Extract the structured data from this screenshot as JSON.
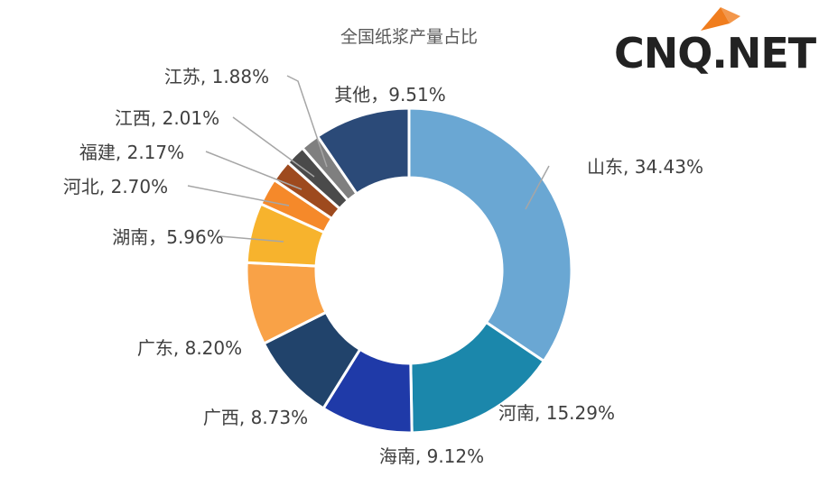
{
  "chart_data": {
    "type": "pie",
    "variant": "donut",
    "title": "全国纸浆产量占比",
    "legend": "none",
    "slices": [
      {
        "name": "山东",
        "value": 34.43,
        "label": "山东, 34.43%",
        "color": "#6aa7d3"
      },
      {
        "name": "河南",
        "value": 15.29,
        "label": "河南, 15.29%",
        "color": "#1b87ab"
      },
      {
        "name": "海南",
        "value": 9.12,
        "label": "海南, 9.12%",
        "color": "#1f3aa8"
      },
      {
        "name": "广西",
        "value": 8.73,
        "label": "广西, 8.73%",
        "color": "#21436b"
      },
      {
        "name": "广东",
        "value": 8.2,
        "label": "广东, 8.20%",
        "color": "#f9a247"
      },
      {
        "name": "湖南",
        "value": 5.96,
        "label": "湖南，5.96%",
        "color": "#f7b32d"
      },
      {
        "name": "河北",
        "value": 2.7,
        "label": "河北, 2.70%",
        "color": "#f5892a"
      },
      {
        "name": "福建",
        "value": 2.17,
        "label": "福建, 2.17%",
        "color": "#9e4a1e"
      },
      {
        "name": "江西",
        "value": 2.01,
        "label": "江西, 2.01%",
        "color": "#4a4a4a"
      },
      {
        "name": "江苏",
        "value": 1.88,
        "label": "江苏, 1.88%",
        "color": "#7f7f7f"
      },
      {
        "name": "其他",
        "value": 9.51,
        "label": "其他，9.51%",
        "color": "#2b4a78"
      }
    ]
  },
  "logo": {
    "text": "CNQ.NET",
    "accent_color": "#f07d1e"
  }
}
